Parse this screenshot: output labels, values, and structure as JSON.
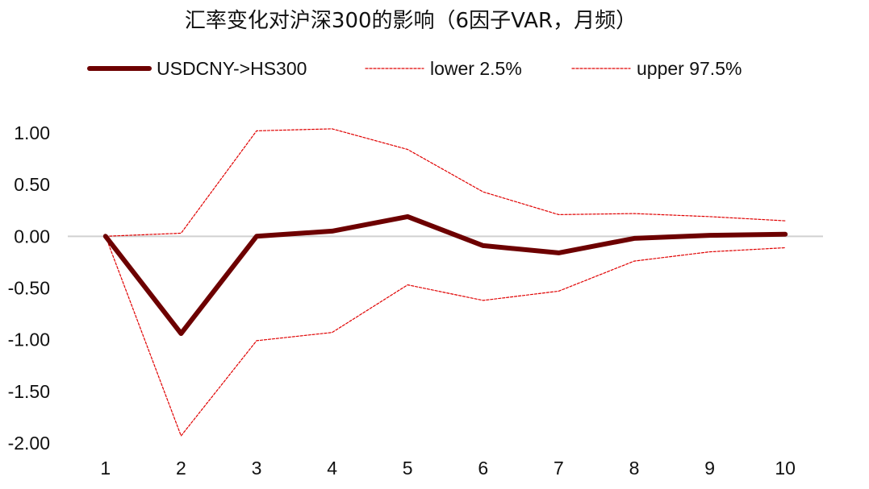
{
  "chart_data": {
    "type": "line",
    "title": "汇率变化对沪深300的影响（6因子VAR，月频）",
    "xlabel": "",
    "ylabel": "",
    "x": [
      1,
      2,
      3,
      4,
      5,
      6,
      7,
      8,
      9,
      10
    ],
    "xticks": [
      "1",
      "2",
      "3",
      "4",
      "5",
      "6",
      "7",
      "8",
      "9",
      "10"
    ],
    "yticks": [
      "1.00",
      "0.50",
      "0.00",
      "-0.50",
      "-1.00",
      "-1.50",
      "-2.00"
    ],
    "ylim": [
      -2.0,
      1.0
    ],
    "grid": false,
    "legend_position": "top",
    "series": [
      {
        "name": "USDCNY->HS300",
        "style": "solid-thick",
        "color": "#6d0000",
        "values": [
          0.0,
          -0.94,
          0.0,
          0.05,
          0.19,
          -0.09,
          -0.16,
          -0.02,
          0.01,
          0.02
        ]
      },
      {
        "name": "lower 2.5%",
        "style": "dashed-thin",
        "color": "#e00000",
        "values": [
          0.0,
          -1.93,
          -1.01,
          -0.93,
          -0.47,
          -0.62,
          -0.53,
          -0.24,
          -0.15,
          -0.11
        ]
      },
      {
        "name": "upper 97.5%",
        "style": "dashed-thin",
        "color": "#e00000",
        "values": [
          0.0,
          0.03,
          1.02,
          1.04,
          0.84,
          0.43,
          0.21,
          0.22,
          0.19,
          0.15
        ]
      }
    ]
  }
}
